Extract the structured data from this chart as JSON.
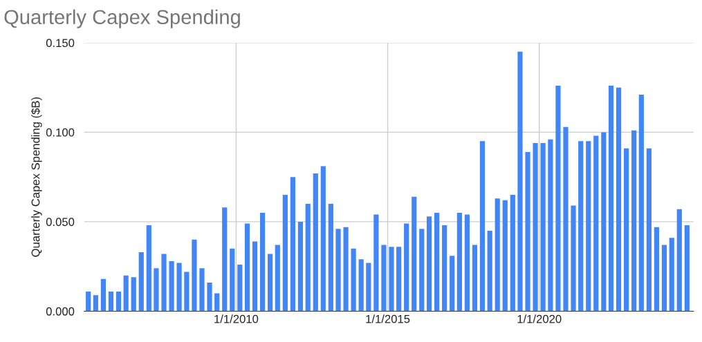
{
  "chart_data": {
    "type": "bar",
    "title": "Quarterly Capex Spending",
    "ylabel": "Quarterly Capex Spending ($B)",
    "x": [
      "2005-02-15",
      "2005-05-15",
      "2005-08-15",
      "2005-11-15",
      "2006-02-15",
      "2006-05-15",
      "2006-08-15",
      "2006-11-15",
      "2007-02-15",
      "2007-05-15",
      "2007-08-15",
      "2007-11-15",
      "2008-02-15",
      "2008-05-15",
      "2008-08-15",
      "2008-11-15",
      "2009-02-15",
      "2009-05-15",
      "2009-08-15",
      "2009-11-15",
      "2010-02-15",
      "2010-05-15",
      "2010-08-15",
      "2010-11-15",
      "2011-02-15",
      "2011-05-15",
      "2011-08-15",
      "2011-11-15",
      "2012-02-15",
      "2012-05-15",
      "2012-08-15",
      "2012-11-15",
      "2013-02-15",
      "2013-05-15",
      "2013-08-15",
      "2013-11-15",
      "2014-02-15",
      "2014-05-15",
      "2014-08-15",
      "2014-11-15",
      "2015-02-15",
      "2015-05-15",
      "2015-08-15",
      "2015-11-15",
      "2016-02-15",
      "2016-05-15",
      "2016-08-15",
      "2016-11-15",
      "2017-02-15",
      "2017-05-15",
      "2017-08-15",
      "2017-11-15",
      "2018-02-15",
      "2018-05-15",
      "2018-08-15",
      "2018-11-15",
      "2019-02-15",
      "2019-05-15",
      "2019-08-15",
      "2019-11-15",
      "2020-02-15",
      "2020-05-15",
      "2020-08-15",
      "2020-11-15",
      "2021-02-15",
      "2021-05-15",
      "2021-08-15",
      "2021-11-15",
      "2022-02-15",
      "2022-05-15",
      "2022-08-15",
      "2022-11-15",
      "2023-02-15",
      "2023-05-15",
      "2023-08-15",
      "2023-11-15",
      "2024-02-15",
      "2024-05-15",
      "2024-08-15",
      "2024-11-15"
    ],
    "values": [
      0.011,
      0.009,
      0.018,
      0.011,
      0.011,
      0.02,
      0.019,
      0.033,
      0.048,
      0.024,
      0.032,
      0.028,
      0.027,
      0.022,
      0.04,
      0.024,
      0.016,
      0.01,
      0.058,
      0.035,
      0.026,
      0.049,
      0.039,
      0.055,
      0.032,
      0.037,
      0.065,
      0.075,
      0.05,
      0.06,
      0.077,
      0.081,
      0.06,
      0.046,
      0.047,
      0.035,
      0.029,
      0.027,
      0.054,
      0.037,
      0.036,
      0.036,
      0.049,
      0.064,
      0.046,
      0.053,
      0.055,
      0.048,
      0.031,
      0.055,
      0.054,
      0.037,
      0.095,
      0.045,
      0.063,
      0.062,
      0.065,
      0.145,
      0.089,
      0.094,
      0.094,
      0.096,
      0.126,
      0.103,
      0.059,
      0.095,
      0.095,
      0.098,
      0.1,
      0.126,
      0.125,
      0.091,
      0.101,
      0.121,
      0.091,
      0.047,
      0.037,
      0.041,
      0.057,
      0.048
    ],
    "color": "#4285f4",
    "xlim": [
      "2004-12-28",
      "2025-02-02"
    ],
    "xticks": [
      {
        "value": "2010-01-01",
        "label": "1/1/2010"
      },
      {
        "value": "2015-01-01",
        "label": "1/1/2015"
      },
      {
        "value": "2020-01-01",
        "label": "1/1/2020"
      }
    ],
    "ylim": [
      0,
      0.15
    ],
    "yticks": [
      {
        "value": 0,
        "label": "0.000"
      },
      {
        "value": 0.05,
        "label": "0.050"
      },
      {
        "value": 0.1,
        "label": "0.100"
      },
      {
        "value": 0.15,
        "label": "0.150"
      }
    ],
    "grid": true
  }
}
